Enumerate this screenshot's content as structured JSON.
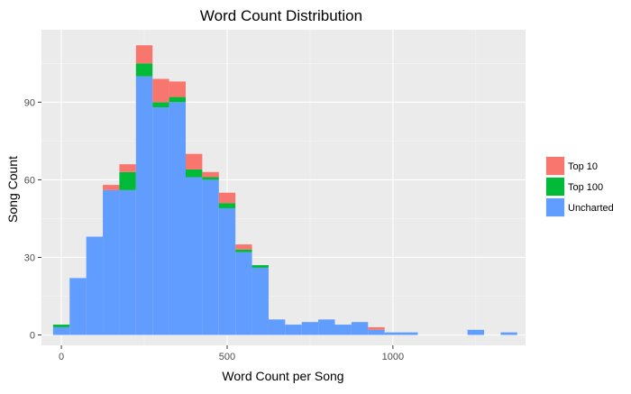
{
  "chart_data": {
    "type": "bar",
    "stacked": true,
    "title": "Word Count Distribution",
    "xlabel": "Word Count per Song",
    "ylabel": "Song Count",
    "xlim": [
      -60,
      1400
    ],
    "ylim": [
      -4,
      118
    ],
    "x_ticks": [
      0,
      500,
      1000
    ],
    "y_ticks": [
      0,
      30,
      60,
      90
    ],
    "grid": true,
    "legend_position": "right",
    "bin_width": 50,
    "bin_centers": [
      0,
      50,
      100,
      150,
      200,
      250,
      300,
      350,
      400,
      450,
      500,
      550,
      600,
      650,
      700,
      750,
      800,
      850,
      900,
      950,
      1000,
      1050,
      1100,
      1150,
      1200,
      1250,
      1300,
      1350
    ],
    "series": [
      {
        "name": "Uncharted",
        "color": "#619cff",
        "values": [
          3,
          22,
          38,
          56,
          56,
          100,
          88,
          90,
          61,
          60,
          49,
          32,
          26,
          6,
          4,
          5,
          6,
          4,
          5,
          2,
          1,
          1,
          0,
          0,
          0,
          2,
          0,
          1
        ]
      },
      {
        "name": "Top 100",
        "color": "#00ba38",
        "values": [
          1,
          0,
          0,
          0,
          7,
          5,
          2,
          2,
          3,
          1,
          2,
          1,
          1,
          0,
          0,
          0,
          0,
          0,
          0,
          0,
          0,
          0,
          0,
          0,
          0,
          0,
          0,
          0
        ]
      },
      {
        "name": "Top 10",
        "color": "#f8766d",
        "values": [
          0,
          0,
          0,
          2,
          3,
          7,
          9,
          6,
          6,
          2,
          4,
          2,
          0,
          0,
          0,
          0,
          0,
          0,
          0,
          1,
          0,
          0,
          0,
          0,
          0,
          0,
          0,
          0
        ]
      }
    ],
    "legend_order": [
      "Top 10",
      "Top 100",
      "Uncharted"
    ]
  }
}
